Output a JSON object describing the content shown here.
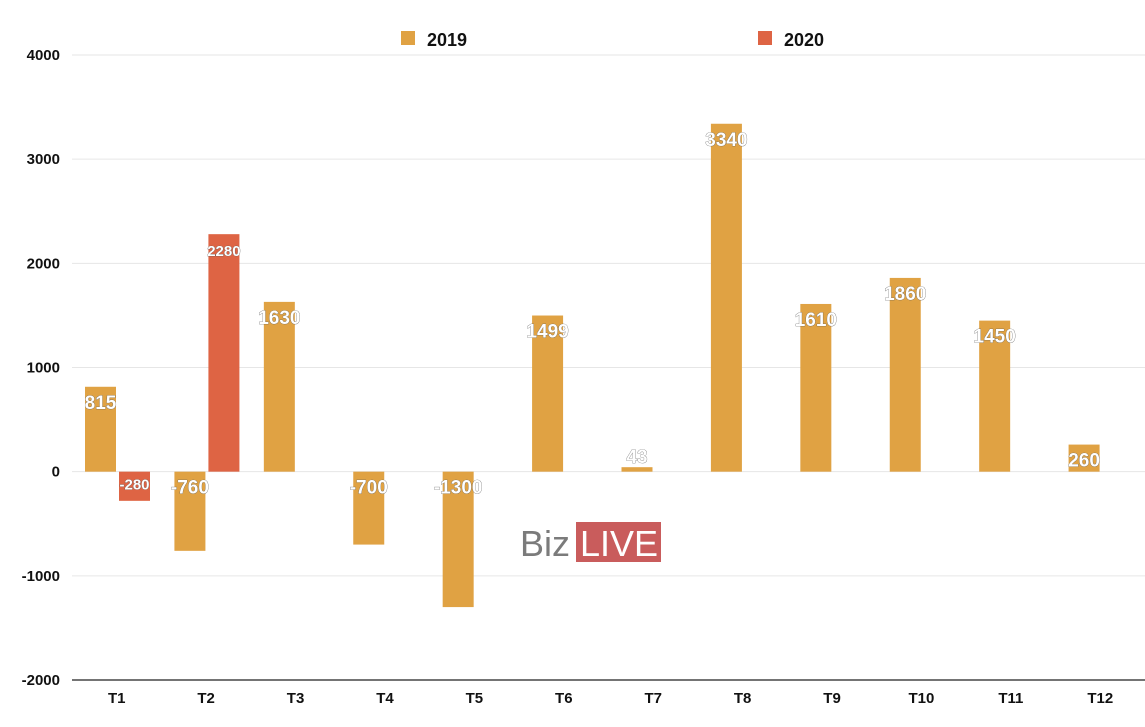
{
  "chart_data": {
    "type": "bar",
    "categories": [
      "T1",
      "T2",
      "T3",
      "T4",
      "T5",
      "T6",
      "T7",
      "T8",
      "T9",
      "T10",
      "T11",
      "T12"
    ],
    "series": [
      {
        "name": "2019",
        "color": "#E0A243",
        "values": [
          815,
          -760,
          1630,
          -700,
          -1300,
          1499,
          43,
          3340,
          1610,
          1860,
          1450,
          260
        ],
        "labels": [
          "815",
          "-760",
          "1630",
          "-700",
          "-1300",
          "1499",
          "43",
          "3340",
          "1610",
          "1860",
          "1450",
          "260"
        ]
      },
      {
        "name": "2020",
        "color": "#DE6444",
        "values": [
          -280,
          2280,
          null,
          null,
          null,
          null,
          null,
          null,
          null,
          null,
          null,
          null
        ],
        "labels": [
          "-280",
          "2280",
          "",
          "",
          "",
          "",
          "",
          "",
          "",
          "",
          "",
          ""
        ]
      }
    ],
    "ylim": [
      -2000,
      4000
    ],
    "yticks": [
      "-2000",
      "-1000",
      "0",
      "1000",
      "2000",
      "3000",
      "4000"
    ],
    "grid": true,
    "legend_position": "top-center"
  },
  "watermark": {
    "part1": "Biz",
    "part2": "LIVE",
    "color2": "#C95C5C"
  }
}
